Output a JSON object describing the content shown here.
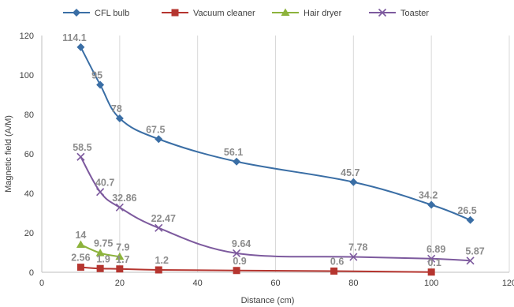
{
  "chart_data": {
    "type": "line",
    "title": "",
    "xlabel": "Distance (cm)",
    "ylabel": "Magnetic field (A/M)",
    "xlim": [
      0,
      120
    ],
    "ylim": [
      0,
      120
    ],
    "xticks": [
      "0",
      "20",
      "40",
      "60",
      "80",
      "100",
      "120"
    ],
    "yticks": [
      "0",
      "20",
      "40",
      "60",
      "80",
      "100",
      "120"
    ],
    "grid": "vertical",
    "legend": "top",
    "series": [
      {
        "name": "CFL bulb",
        "color": "#3A6EA5",
        "marker": "diamond",
        "x": [
          10,
          15,
          20,
          30,
          50,
          80,
          100,
          110
        ],
        "y": [
          114.1,
          95,
          78,
          67.5,
          56.1,
          45.7,
          34.2,
          26.5
        ],
        "labels": [
          "114.1",
          "95",
          "78",
          "67.5",
          "56.1",
          "45.7",
          "34.2",
          "26.5"
        ]
      },
      {
        "name": "Vacuum cleaner",
        "color": "#B5352F",
        "marker": "square",
        "x": [
          10,
          15,
          20,
          30,
          50,
          75,
          100
        ],
        "y": [
          2.56,
          1.9,
          1.7,
          1.2,
          0.9,
          0.6,
          0.1
        ],
        "labels": [
          "2.56",
          "1.9",
          "1.7",
          "1.2",
          "0.9",
          "0.6",
          "0.1"
        ]
      },
      {
        "name": "Hair dryer",
        "color": "#8DB33C",
        "marker": "triangle",
        "x": [
          10,
          15,
          20
        ],
        "y": [
          14,
          9.75,
          7.9
        ],
        "labels": [
          "14",
          "9.75",
          "7.9"
        ]
      },
      {
        "name": "Toaster",
        "color": "#7D5A9E",
        "marker": "x",
        "x": [
          10,
          15,
          20,
          30,
          50,
          80,
          100,
          110
        ],
        "y": [
          58.5,
          40.7,
          32.86,
          22.47,
          9.64,
          7.78,
          6.89,
          5.87
        ],
        "labels": [
          "58.5",
          "40.7",
          "32.86",
          "22.47",
          "9.64",
          "7.78",
          "6.89",
          "5.87"
        ]
      }
    ]
  }
}
